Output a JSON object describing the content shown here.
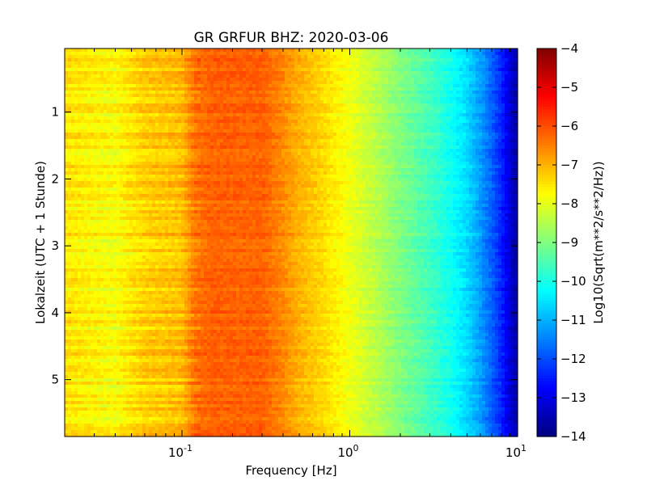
{
  "chart_data": {
    "type": "heatmap",
    "title": "GR GRFUR BHZ: 2020-03-06",
    "xlabel": "Frequency [Hz]",
    "ylabel": "Lokalzeit (UTC + 1 Stunde)",
    "x_scale": "log",
    "xlim": [
      0.02,
      10
    ],
    "x_ticks": [
      {
        "value": 0.1,
        "base": "10",
        "exp": "-1"
      },
      {
        "value": 1,
        "base": "10",
        "exp": "0"
      },
      {
        "value": 10,
        "base": "10",
        "exp": "1"
      }
    ],
    "ylim": [
      0.05,
      5.85
    ],
    "y_inverted": true,
    "y_ticks": [
      1,
      2,
      3,
      4,
      5
    ],
    "colorbar": {
      "label": "Log10(Sqrt(m**2/s**2/Hz))",
      "colormap": "jet",
      "range": [
        -14,
        -4
      ],
      "ticks": [
        -4,
        -5,
        -6,
        -7,
        -8,
        -9,
        -10,
        -11,
        -12,
        -13,
        -14
      ]
    },
    "spectrum_profile": {
      "frequency_hz": [
        0.02,
        0.04,
        0.06,
        0.08,
        0.1,
        0.12,
        0.15,
        0.2,
        0.3,
        0.4,
        0.5,
        0.7,
        1.0,
        1.5,
        2.0,
        3.0,
        4.0,
        5.0,
        6.0,
        7.0,
        8.0,
        9.0,
        10.0
      ],
      "log10_amplitude": [
        -7.5,
        -7.8,
        -7.3,
        -7.2,
        -7.1,
        -6.4,
        -6.2,
        -6.2,
        -6.2,
        -6.6,
        -7.0,
        -7.4,
        -7.9,
        -8.5,
        -9.0,
        -9.6,
        -10.1,
        -10.6,
        -11.2,
        -11.8,
        -12.4,
        -13.1,
        -13.7
      ]
    }
  }
}
